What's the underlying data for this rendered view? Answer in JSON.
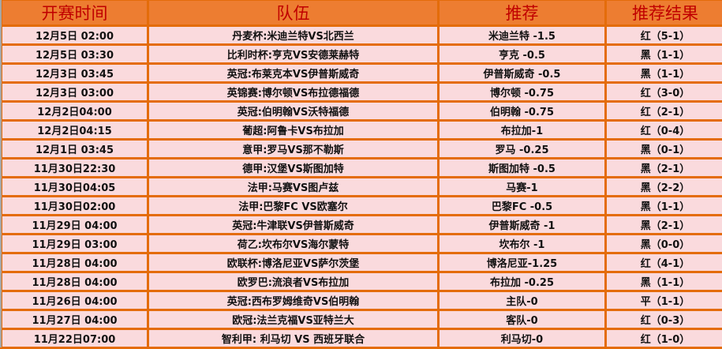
{
  "headers": [
    "开赛时间",
    "队伍",
    "推荐",
    "推荐结果"
  ],
  "rows": [
    {
      "time": "12月5日 02:00",
      "match": "丹麦杯:米迪兰特VS北西兰",
      "tip": "米迪兰特 -1.5",
      "result": "红（5-1）"
    },
    {
      "time": "12月5日 03:30",
      "match": "比利时杯:亨克VS安德莱赫特",
      "tip": "亨克 -0.5",
      "result": "黑（1-1）"
    },
    {
      "time": "12月3日 03:45",
      "match": "英冠:布莱克本VS伊普斯威奇",
      "tip": "伊普斯威奇 -0.5",
      "result": "黑（1-1）"
    },
    {
      "time": "12月3日 03:00",
      "match": "英锦赛:博尔顿VS布拉德福德",
      "tip": "博尔顿 -0.75",
      "result": "红（3-0）"
    },
    {
      "time": "12月2日04:00",
      "match": "英冠:伯明翰VS沃特福德",
      "tip": "伯明翰 -0.75",
      "result": "红（2-1）"
    },
    {
      "time": "12月2日04:15",
      "match": "葡超:阿鲁卡VS布拉加",
      "tip": "布拉加-1",
      "result": "红（0-4）"
    },
    {
      "time": "12月1日 03:45",
      "match": "意甲:罗马VS那不勒斯",
      "tip": "罗马 -0.25",
      "result": "黑（0-1）"
    },
    {
      "time": "11月30日22:30",
      "match": "德甲:汉堡VS斯图加特",
      "tip": "斯图加特 -0.5",
      "result": "黑（2-1）"
    },
    {
      "time": "11月30日04:05",
      "match": "法甲:马赛VS图卢兹",
      "tip": "马赛-1",
      "result": "黑（2-2）"
    },
    {
      "time": "11月30日02:00",
      "match": "法甲:巴黎FC VS欧塞尔",
      "tip": "巴黎FC -0.5",
      "result": "黑（1-1）"
    },
    {
      "time": "11月29日 04:00",
      "match": "英冠:牛津联VS伊普斯威奇",
      "tip": "伊普斯威奇 -1",
      "result": "黑（2-1）"
    },
    {
      "time": "11月29日 03:00",
      "match": "荷乙:坎布尔VS海尔蒙特",
      "tip": "坎布尔 -1",
      "result": "黑（0-0）"
    },
    {
      "time": "11月28日 04:00",
      "match": "欧联杯:博洛尼亚VS萨尔茨堡",
      "tip": "博洛尼亚-1.25",
      "result": "红（4-1）"
    },
    {
      "time": "11月28日 04:00",
      "match": "欧罗巴:流浪者VS布拉加",
      "tip": "布拉加 -0.25",
      "result": "黑（1-1）"
    },
    {
      "time": "11月26日 04:00",
      "match": "英冠:西布罗姆维奇VS伯明翰",
      "tip": "主队-0",
      "result": "平（1-1）"
    },
    {
      "time": "11月27日 04:00",
      "match": "欧冠:法兰克福VS亚特兰大",
      "tip": "客队-0",
      "result": "红（0-3）"
    },
    {
      "time": "11月22日07:00",
      "match": "智利甲: 利马切 VS 西班牙联合",
      "tip": "利马切-0",
      "result": "红（1-0）"
    }
  ]
}
